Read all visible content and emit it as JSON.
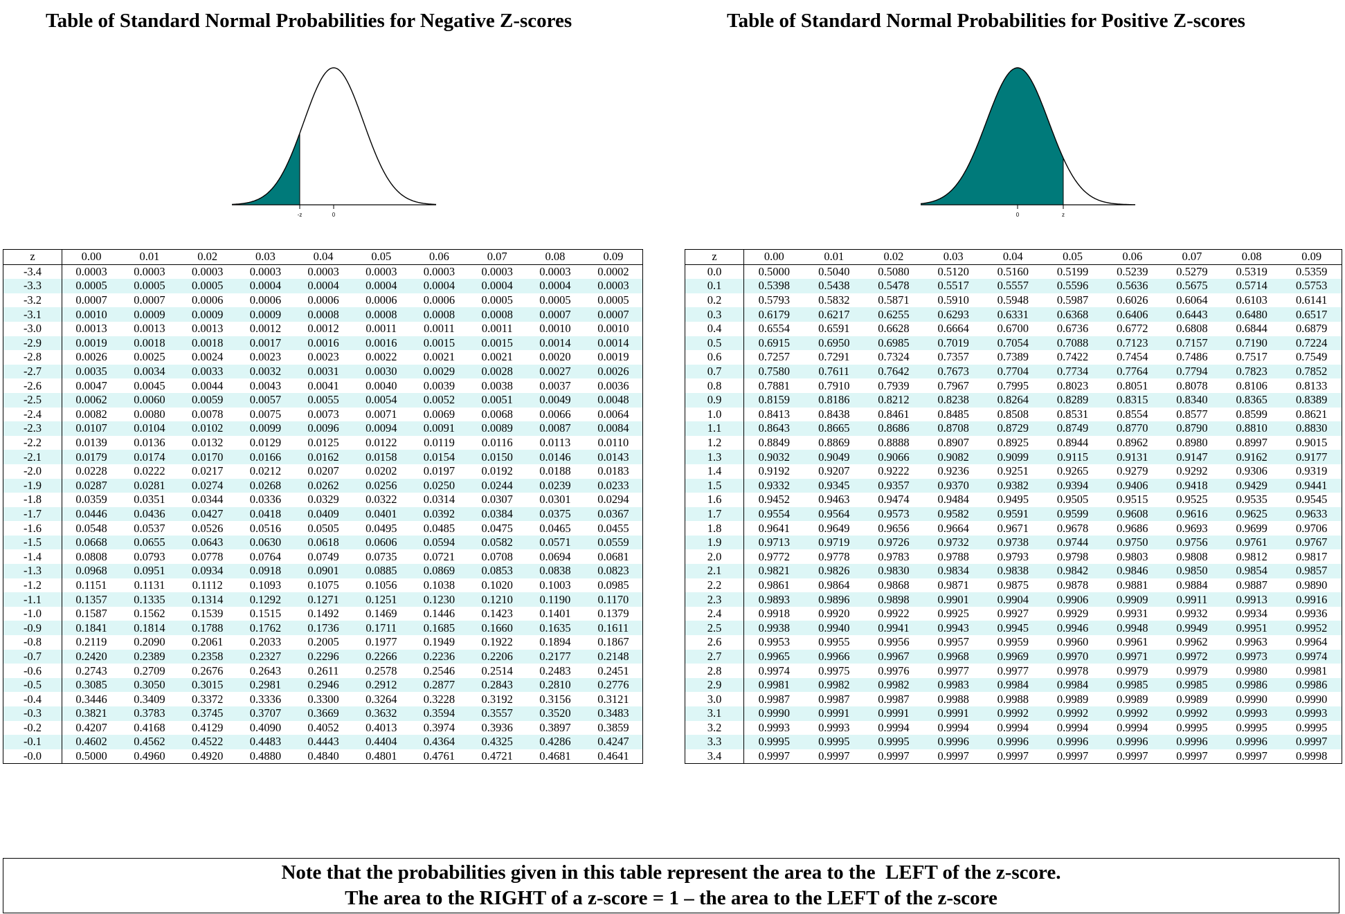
{
  "negative": {
    "title": "Table of Standard Normal Probabilities for Negative Z-scores",
    "curve": {
      "shaded": "left-tail",
      "label_z": "-z",
      "label_zero": "0",
      "fill_color": "#007a7a"
    },
    "header": [
      "z",
      "0.00",
      "0.01",
      "0.02",
      "0.03",
      "0.04",
      "0.05",
      "0.06",
      "0.07",
      "0.08",
      "0.09"
    ],
    "rows": [
      [
        "-3.4",
        "0.0003",
        "0.0003",
        "0.0003",
        "0.0003",
        "0.0003",
        "0.0003",
        "0.0003",
        "0.0003",
        "0.0003",
        "0.0002"
      ],
      [
        "-3.3",
        "0.0005",
        "0.0005",
        "0.0005",
        "0.0004",
        "0.0004",
        "0.0004",
        "0.0004",
        "0.0004",
        "0.0004",
        "0.0003"
      ],
      [
        "-3.2",
        "0.0007",
        "0.0007",
        "0.0006",
        "0.0006",
        "0.0006",
        "0.0006",
        "0.0006",
        "0.0005",
        "0.0005",
        "0.0005"
      ],
      [
        "-3.1",
        "0.0010",
        "0.0009",
        "0.0009",
        "0.0009",
        "0.0008",
        "0.0008",
        "0.0008",
        "0.0008",
        "0.0007",
        "0.0007"
      ],
      [
        "-3.0",
        "0.0013",
        "0.0013",
        "0.0013",
        "0.0012",
        "0.0012",
        "0.0011",
        "0.0011",
        "0.0011",
        "0.0010",
        "0.0010"
      ],
      [
        "-2.9",
        "0.0019",
        "0.0018",
        "0.0018",
        "0.0017",
        "0.0016",
        "0.0016",
        "0.0015",
        "0.0015",
        "0.0014",
        "0.0014"
      ],
      [
        "-2.8",
        "0.0026",
        "0.0025",
        "0.0024",
        "0.0023",
        "0.0023",
        "0.0022",
        "0.0021",
        "0.0021",
        "0.0020",
        "0.0019"
      ],
      [
        "-2.7",
        "0.0035",
        "0.0034",
        "0.0033",
        "0.0032",
        "0.0031",
        "0.0030",
        "0.0029",
        "0.0028",
        "0.0027",
        "0.0026"
      ],
      [
        "-2.6",
        "0.0047",
        "0.0045",
        "0.0044",
        "0.0043",
        "0.0041",
        "0.0040",
        "0.0039",
        "0.0038",
        "0.0037",
        "0.0036"
      ],
      [
        "-2.5",
        "0.0062",
        "0.0060",
        "0.0059",
        "0.0057",
        "0.0055",
        "0.0054",
        "0.0052",
        "0.0051",
        "0.0049",
        "0.0048"
      ],
      [
        "-2.4",
        "0.0082",
        "0.0080",
        "0.0078",
        "0.0075",
        "0.0073",
        "0.0071",
        "0.0069",
        "0.0068",
        "0.0066",
        "0.0064"
      ],
      [
        "-2.3",
        "0.0107",
        "0.0104",
        "0.0102",
        "0.0099",
        "0.0096",
        "0.0094",
        "0.0091",
        "0.0089",
        "0.0087",
        "0.0084"
      ],
      [
        "-2.2",
        "0.0139",
        "0.0136",
        "0.0132",
        "0.0129",
        "0.0125",
        "0.0122",
        "0.0119",
        "0.0116",
        "0.0113",
        "0.0110"
      ],
      [
        "-2.1",
        "0.0179",
        "0.0174",
        "0.0170",
        "0.0166",
        "0.0162",
        "0.0158",
        "0.0154",
        "0.0150",
        "0.0146",
        "0.0143"
      ],
      [
        "-2.0",
        "0.0228",
        "0.0222",
        "0.0217",
        "0.0212",
        "0.0207",
        "0.0202",
        "0.0197",
        "0.0192",
        "0.0188",
        "0.0183"
      ],
      [
        "-1.9",
        "0.0287",
        "0.0281",
        "0.0274",
        "0.0268",
        "0.0262",
        "0.0256",
        "0.0250",
        "0.0244",
        "0.0239",
        "0.0233"
      ],
      [
        "-1.8",
        "0.0359",
        "0.0351",
        "0.0344",
        "0.0336",
        "0.0329",
        "0.0322",
        "0.0314",
        "0.0307",
        "0.0301",
        "0.0294"
      ],
      [
        "-1.7",
        "0.0446",
        "0.0436",
        "0.0427",
        "0.0418",
        "0.0409",
        "0.0401",
        "0.0392",
        "0.0384",
        "0.0375",
        "0.0367"
      ],
      [
        "-1.6",
        "0.0548",
        "0.0537",
        "0.0526",
        "0.0516",
        "0.0505",
        "0.0495",
        "0.0485",
        "0.0475",
        "0.0465",
        "0.0455"
      ],
      [
        "-1.5",
        "0.0668",
        "0.0655",
        "0.0643",
        "0.0630",
        "0.0618",
        "0.0606",
        "0.0594",
        "0.0582",
        "0.0571",
        "0.0559"
      ],
      [
        "-1.4",
        "0.0808",
        "0.0793",
        "0.0778",
        "0.0764",
        "0.0749",
        "0.0735",
        "0.0721",
        "0.0708",
        "0.0694",
        "0.0681"
      ],
      [
        "-1.3",
        "0.0968",
        "0.0951",
        "0.0934",
        "0.0918",
        "0.0901",
        "0.0885",
        "0.0869",
        "0.0853",
        "0.0838",
        "0.0823"
      ],
      [
        "-1.2",
        "0.1151",
        "0.1131",
        "0.1112",
        "0.1093",
        "0.1075",
        "0.1056",
        "0.1038",
        "0.1020",
        "0.1003",
        "0.0985"
      ],
      [
        "-1.1",
        "0.1357",
        "0.1335",
        "0.1314",
        "0.1292",
        "0.1271",
        "0.1251",
        "0.1230",
        "0.1210",
        "0.1190",
        "0.1170"
      ],
      [
        "-1.0",
        "0.1587",
        "0.1562",
        "0.1539",
        "0.1515",
        "0.1492",
        "0.1469",
        "0.1446",
        "0.1423",
        "0.1401",
        "0.1379"
      ],
      [
        "-0.9",
        "0.1841",
        "0.1814",
        "0.1788",
        "0.1762",
        "0.1736",
        "0.1711",
        "0.1685",
        "0.1660",
        "0.1635",
        "0.1611"
      ],
      [
        "-0.8",
        "0.2119",
        "0.2090",
        "0.2061",
        "0.2033",
        "0.2005",
        "0.1977",
        "0.1949",
        "0.1922",
        "0.1894",
        "0.1867"
      ],
      [
        "-0.7",
        "0.2420",
        "0.2389",
        "0.2358",
        "0.2327",
        "0.2296",
        "0.2266",
        "0.2236",
        "0.2206",
        "0.2177",
        "0.2148"
      ],
      [
        "-0.6",
        "0.2743",
        "0.2709",
        "0.2676",
        "0.2643",
        "0.2611",
        "0.2578",
        "0.2546",
        "0.2514",
        "0.2483",
        "0.2451"
      ],
      [
        "-0.5",
        "0.3085",
        "0.3050",
        "0.3015",
        "0.2981",
        "0.2946",
        "0.2912",
        "0.2877",
        "0.2843",
        "0.2810",
        "0.2776"
      ],
      [
        "-0.4",
        "0.3446",
        "0.3409",
        "0.3372",
        "0.3336",
        "0.3300",
        "0.3264",
        "0.3228",
        "0.3192",
        "0.3156",
        "0.3121"
      ],
      [
        "-0.3",
        "0.3821",
        "0.3783",
        "0.3745",
        "0.3707",
        "0.3669",
        "0.3632",
        "0.3594",
        "0.3557",
        "0.3520",
        "0.3483"
      ],
      [
        "-0.2",
        "0.4207",
        "0.4168",
        "0.4129",
        "0.4090",
        "0.4052",
        "0.4013",
        "0.3974",
        "0.3936",
        "0.3897",
        "0.3859"
      ],
      [
        "-0.1",
        "0.4602",
        "0.4562",
        "0.4522",
        "0.4483",
        "0.4443",
        "0.4404",
        "0.4364",
        "0.4325",
        "0.4286",
        "0.4247"
      ],
      [
        "-0.0",
        "0.5000",
        "0.4960",
        "0.4920",
        "0.4880",
        "0.4840",
        "0.4801",
        "0.4761",
        "0.4721",
        "0.4681",
        "0.4641"
      ]
    ]
  },
  "positive": {
    "title": "Table of Standard Normal Probabilities for Positive Z-scores",
    "curve": {
      "shaded": "left-of-z",
      "label_z": "z",
      "label_zero": "0",
      "fill_color": "#007a7a"
    },
    "header": [
      "z",
      "0.00",
      "0.01",
      "0.02",
      "0.03",
      "0.04",
      "0.05",
      "0.06",
      "0.07",
      "0.08",
      "0.09"
    ],
    "rows": [
      [
        "0.0",
        "0.5000",
        "0.5040",
        "0.5080",
        "0.5120",
        "0.5160",
        "0.5199",
        "0.5239",
        "0.5279",
        "0.5319",
        "0.5359"
      ],
      [
        "0.1",
        "0.5398",
        "0.5438",
        "0.5478",
        "0.5517",
        "0.5557",
        "0.5596",
        "0.5636",
        "0.5675",
        "0.5714",
        "0.5753"
      ],
      [
        "0.2",
        "0.5793",
        "0.5832",
        "0.5871",
        "0.5910",
        "0.5948",
        "0.5987",
        "0.6026",
        "0.6064",
        "0.6103",
        "0.6141"
      ],
      [
        "0.3",
        "0.6179",
        "0.6217",
        "0.6255",
        "0.6293",
        "0.6331",
        "0.6368",
        "0.6406",
        "0.6443",
        "0.6480",
        "0.6517"
      ],
      [
        "0.4",
        "0.6554",
        "0.6591",
        "0.6628",
        "0.6664",
        "0.6700",
        "0.6736",
        "0.6772",
        "0.6808",
        "0.6844",
        "0.6879"
      ],
      [
        "0.5",
        "0.6915",
        "0.6950",
        "0.6985",
        "0.7019",
        "0.7054",
        "0.7088",
        "0.7123",
        "0.7157",
        "0.7190",
        "0.7224"
      ],
      [
        "0.6",
        "0.7257",
        "0.7291",
        "0.7324",
        "0.7357",
        "0.7389",
        "0.7422",
        "0.7454",
        "0.7486",
        "0.7517",
        "0.7549"
      ],
      [
        "0.7",
        "0.7580",
        "0.7611",
        "0.7642",
        "0.7673",
        "0.7704",
        "0.7734",
        "0.7764",
        "0.7794",
        "0.7823",
        "0.7852"
      ],
      [
        "0.8",
        "0.7881",
        "0.7910",
        "0.7939",
        "0.7967",
        "0.7995",
        "0.8023",
        "0.8051",
        "0.8078",
        "0.8106",
        "0.8133"
      ],
      [
        "0.9",
        "0.8159",
        "0.8186",
        "0.8212",
        "0.8238",
        "0.8264",
        "0.8289",
        "0.8315",
        "0.8340",
        "0.8365",
        "0.8389"
      ],
      [
        "1.0",
        "0.8413",
        "0.8438",
        "0.8461",
        "0.8485",
        "0.8508",
        "0.8531",
        "0.8554",
        "0.8577",
        "0.8599",
        "0.8621"
      ],
      [
        "1.1",
        "0.8643",
        "0.8665",
        "0.8686",
        "0.8708",
        "0.8729",
        "0.8749",
        "0.8770",
        "0.8790",
        "0.8810",
        "0.8830"
      ],
      [
        "1.2",
        "0.8849",
        "0.8869",
        "0.8888",
        "0.8907",
        "0.8925",
        "0.8944",
        "0.8962",
        "0.8980",
        "0.8997",
        "0.9015"
      ],
      [
        "1.3",
        "0.9032",
        "0.9049",
        "0.9066",
        "0.9082",
        "0.9099",
        "0.9115",
        "0.9131",
        "0.9147",
        "0.9162",
        "0.9177"
      ],
      [
        "1.4",
        "0.9192",
        "0.9207",
        "0.9222",
        "0.9236",
        "0.9251",
        "0.9265",
        "0.9279",
        "0.9292",
        "0.9306",
        "0.9319"
      ],
      [
        "1.5",
        "0.9332",
        "0.9345",
        "0.9357",
        "0.9370",
        "0.9382",
        "0.9394",
        "0.9406",
        "0.9418",
        "0.9429",
        "0.9441"
      ],
      [
        "1.6",
        "0.9452",
        "0.9463",
        "0.9474",
        "0.9484",
        "0.9495",
        "0.9505",
        "0.9515",
        "0.9525",
        "0.9535",
        "0.9545"
      ],
      [
        "1.7",
        "0.9554",
        "0.9564",
        "0.9573",
        "0.9582",
        "0.9591",
        "0.9599",
        "0.9608",
        "0.9616",
        "0.9625",
        "0.9633"
      ],
      [
        "1.8",
        "0.9641",
        "0.9649",
        "0.9656",
        "0.9664",
        "0.9671",
        "0.9678",
        "0.9686",
        "0.9693",
        "0.9699",
        "0.9706"
      ],
      [
        "1.9",
        "0.9713",
        "0.9719",
        "0.9726",
        "0.9732",
        "0.9738",
        "0.9744",
        "0.9750",
        "0.9756",
        "0.9761",
        "0.9767"
      ],
      [
        "2.0",
        "0.9772",
        "0.9778",
        "0.9783",
        "0.9788",
        "0.9793",
        "0.9798",
        "0.9803",
        "0.9808",
        "0.9812",
        "0.9817"
      ],
      [
        "2.1",
        "0.9821",
        "0.9826",
        "0.9830",
        "0.9834",
        "0.9838",
        "0.9842",
        "0.9846",
        "0.9850",
        "0.9854",
        "0.9857"
      ],
      [
        "2.2",
        "0.9861",
        "0.9864",
        "0.9868",
        "0.9871",
        "0.9875",
        "0.9878",
        "0.9881",
        "0.9884",
        "0.9887",
        "0.9890"
      ],
      [
        "2.3",
        "0.9893",
        "0.9896",
        "0.9898",
        "0.9901",
        "0.9904",
        "0.9906",
        "0.9909",
        "0.9911",
        "0.9913",
        "0.9916"
      ],
      [
        "2.4",
        "0.9918",
        "0.9920",
        "0.9922",
        "0.9925",
        "0.9927",
        "0.9929",
        "0.9931",
        "0.9932",
        "0.9934",
        "0.9936"
      ],
      [
        "2.5",
        "0.9938",
        "0.9940",
        "0.9941",
        "0.9943",
        "0.9945",
        "0.9946",
        "0.9948",
        "0.9949",
        "0.9951",
        "0.9952"
      ],
      [
        "2.6",
        "0.9953",
        "0.9955",
        "0.9956",
        "0.9957",
        "0.9959",
        "0.9960",
        "0.9961",
        "0.9962",
        "0.9963",
        "0.9964"
      ],
      [
        "2.7",
        "0.9965",
        "0.9966",
        "0.9967",
        "0.9968",
        "0.9969",
        "0.9970",
        "0.9971",
        "0.9972",
        "0.9973",
        "0.9974"
      ],
      [
        "2.8",
        "0.9974",
        "0.9975",
        "0.9976",
        "0.9977",
        "0.9977",
        "0.9978",
        "0.9979",
        "0.9979",
        "0.9980",
        "0.9981"
      ],
      [
        "2.9",
        "0.9981",
        "0.9982",
        "0.9982",
        "0.9983",
        "0.9984",
        "0.9984",
        "0.9985",
        "0.9985",
        "0.9986",
        "0.9986"
      ],
      [
        "3.0",
        "0.9987",
        "0.9987",
        "0.9987",
        "0.9988",
        "0.9988",
        "0.9989",
        "0.9989",
        "0.9989",
        "0.9990",
        "0.9990"
      ],
      [
        "3.1",
        "0.9990",
        "0.9991",
        "0.9991",
        "0.9991",
        "0.9992",
        "0.9992",
        "0.9992",
        "0.9992",
        "0.9993",
        "0.9993"
      ],
      [
        "3.2",
        "0.9993",
        "0.9993",
        "0.9994",
        "0.9994",
        "0.9994",
        "0.9994",
        "0.9994",
        "0.9995",
        "0.9995",
        "0.9995"
      ],
      [
        "3.3",
        "0.9995",
        "0.9995",
        "0.9995",
        "0.9996",
        "0.9996",
        "0.9996",
        "0.9996",
        "0.9996",
        "0.9996",
        "0.9997"
      ],
      [
        "3.4",
        "0.9997",
        "0.9997",
        "0.9997",
        "0.9997",
        "0.9997",
        "0.9997",
        "0.9997",
        "0.9997",
        "0.9997",
        "0.9998"
      ]
    ]
  },
  "note": {
    "line1": "Note that the probabilities given in this table represent the area to the  LEFT of the z-score.",
    "line2": "The area to the RIGHT of a z-score = 1 – the area to the LEFT of the z-score"
  }
}
